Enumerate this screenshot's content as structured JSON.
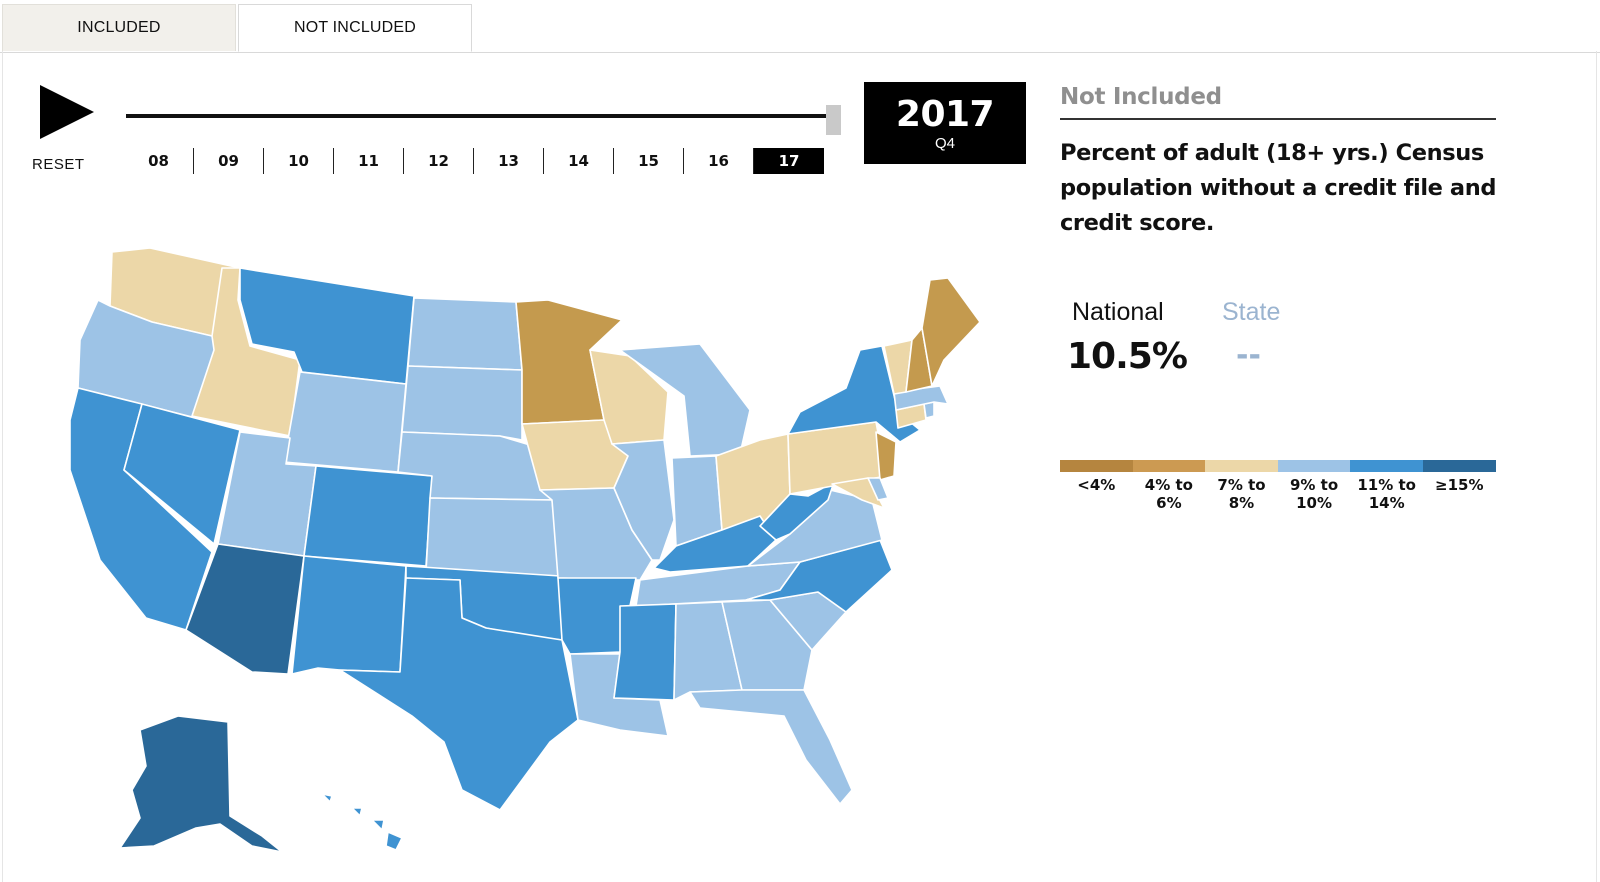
{
  "tabs": {
    "included": "INCLUDED",
    "not_included": "NOT INCLUDED"
  },
  "controls": {
    "reset": "RESET"
  },
  "timeline": {
    "years": [
      "08",
      "09",
      "10",
      "11",
      "12",
      "13",
      "14",
      "15",
      "16",
      "17"
    ],
    "selected": "17",
    "current_year": "2017",
    "current_quarter": "Q4"
  },
  "info": {
    "title": "Not Included",
    "description": "Percent of adult (18+ yrs.) Census population without a credit file and credit score.",
    "national_label": "National",
    "state_label": "State",
    "national_value": "10.5%",
    "state_value": "--"
  },
  "legend": [
    {
      "label": "<4%",
      "color": "#b5853f"
    },
    {
      "label": "4% to\n6%",
      "color": "#cc9a52"
    },
    {
      "label": "7% to\n8%",
      "color": "#ecd7a8"
    },
    {
      "label": "9% to\n10%",
      "color": "#9dc3e6"
    },
    {
      "label": "11% to\n14%",
      "color": "#3f93d2"
    },
    {
      "label": "≥15%",
      "color": "#2a6898"
    }
  ],
  "colors": {
    "c1": "#c49a4e",
    "c2": "#ecd7a8",
    "c3": "#9dc3e6",
    "c4": "#3f93d2",
    "c5": "#2a6898"
  },
  "map_states": [
    {
      "name": "WA",
      "bin": "7% to 8%"
    },
    {
      "name": "OR",
      "bin": "9% to 10%"
    },
    {
      "name": "CA",
      "bin": "11% to 14%"
    },
    {
      "name": "ID",
      "bin": "7% to 8%"
    },
    {
      "name": "NV",
      "bin": "11% to 14%"
    },
    {
      "name": "MT",
      "bin": "11% to 14%"
    },
    {
      "name": "WY",
      "bin": "9% to 10%"
    },
    {
      "name": "UT",
      "bin": "9% to 10%"
    },
    {
      "name": "AZ",
      "bin": "≥15%"
    },
    {
      "name": "CO",
      "bin": "11% to 14%"
    },
    {
      "name": "NM",
      "bin": "11% to 14%"
    },
    {
      "name": "ND",
      "bin": "9% to 10%"
    },
    {
      "name": "SD",
      "bin": "9% to 10%"
    },
    {
      "name": "NE",
      "bin": "9% to 10%"
    },
    {
      "name": "KS",
      "bin": "9% to 10%"
    },
    {
      "name": "OK",
      "bin": "11% to 14%"
    },
    {
      "name": "TX",
      "bin": "11% to 14%"
    },
    {
      "name": "MN",
      "bin": "4% to 6%"
    },
    {
      "name": "IA",
      "bin": "7% to 8%"
    },
    {
      "name": "MO",
      "bin": "9% to 10%"
    },
    {
      "name": "AR",
      "bin": "11% to 14%"
    },
    {
      "name": "LA",
      "bin": "9% to 10%"
    },
    {
      "name": "WI",
      "bin": "7% to 8%"
    },
    {
      "name": "IL",
      "bin": "9% to 10%"
    },
    {
      "name": "MI",
      "bin": "9% to 10%"
    },
    {
      "name": "IN",
      "bin": "9% to 10%"
    },
    {
      "name": "OH",
      "bin": "7% to 8%"
    },
    {
      "name": "KY",
      "bin": "11% to 14%"
    },
    {
      "name": "TN",
      "bin": "9% to 10%"
    },
    {
      "name": "MS",
      "bin": "11% to 14%"
    },
    {
      "name": "AL",
      "bin": "9% to 10%"
    },
    {
      "name": "GA",
      "bin": "9% to 10%"
    },
    {
      "name": "FL",
      "bin": "9% to 10%"
    },
    {
      "name": "SC",
      "bin": "9% to 10%"
    },
    {
      "name": "NC",
      "bin": "11% to 14%"
    },
    {
      "name": "VA",
      "bin": "9% to 10%"
    },
    {
      "name": "WV",
      "bin": "11% to 14%"
    },
    {
      "name": "PA",
      "bin": "7% to 8%"
    },
    {
      "name": "NY",
      "bin": "11% to 14%"
    },
    {
      "name": "NJ",
      "bin": "4% to 6%"
    },
    {
      "name": "MD",
      "bin": "7% to 8%"
    },
    {
      "name": "DE",
      "bin": "9% to 10%"
    },
    {
      "name": "CT",
      "bin": "7% to 8%"
    },
    {
      "name": "RI",
      "bin": "9% to 10%"
    },
    {
      "name": "MA",
      "bin": "9% to 10%"
    },
    {
      "name": "VT",
      "bin": "7% to 8%"
    },
    {
      "name": "NH",
      "bin": "4% to 6%"
    },
    {
      "name": "ME",
      "bin": "4% to 6%"
    },
    {
      "name": "AK",
      "bin": "≥15%"
    },
    {
      "name": "HI",
      "bin": "11% to 14%"
    }
  ]
}
